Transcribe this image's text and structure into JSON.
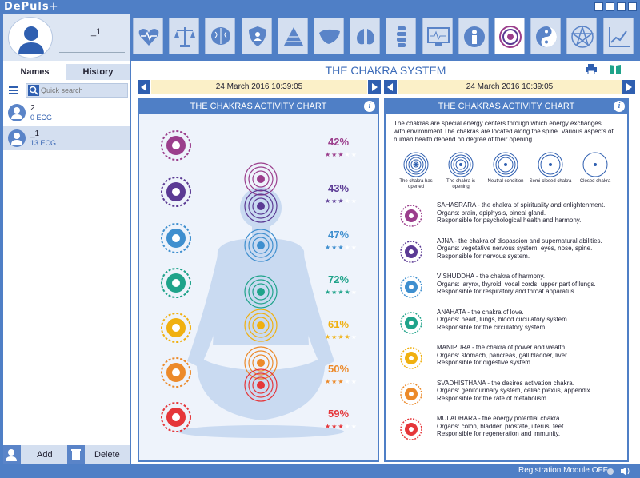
{
  "app": {
    "title": "DePuls+"
  },
  "user": {
    "name": "_1"
  },
  "tabs": [
    {
      "label": "Names"
    },
    {
      "label": "History"
    }
  ],
  "search": {
    "placeholder": "Quick search"
  },
  "patients": [
    {
      "name": "2",
      "ecg": "0 ECG",
      "selected": false
    },
    {
      "name": "_1",
      "ecg": "13 ECG",
      "selected": true
    }
  ],
  "actions": {
    "add": "Add",
    "delete": "Delete"
  },
  "toolbar": {
    "icons": [
      "heart-pulse-icon",
      "scales-icon",
      "brain-icon",
      "shield-icon",
      "pyramid-icon",
      "liver-icon",
      "lungs-icon",
      "spine-icon",
      "monitor-icon",
      "person-icon",
      "chakra-icon",
      "yin-yang-icon",
      "pentagram-icon",
      "chart-icon"
    ],
    "active_index": 10
  },
  "page": {
    "title": "THE CHAKRA SYSTEM"
  },
  "left": {
    "date": "24 March 2016 10:39:05",
    "panel_title": "THE CHAKRAS ACTIVITY CHART"
  },
  "right": {
    "date": "24 March 2016 10:39:05",
    "panel_title": "THE CHAKRAS ACTIVITY CHART",
    "intro": "The chakras are special energy centers through which energy exchanges with environment.The chakras are located along the spine. Various aspects of human health depend on degree of their opening.",
    "legend": [
      "The chakra has opened",
      "The chakra is opening",
      "Neutral condition",
      "Semi-closed chakra",
      "Closed chakra"
    ]
  },
  "chakras": [
    {
      "name": "SAHASRARA",
      "percent": "42%",
      "stars": 3,
      "color": "#9b3e8c",
      "text": [
        "SAHASRARA - the chakra of spirituality and enlightenment.",
        "Organs: brain, epiphysis, pineal gland.",
        "Responsible for psychological health and harmony."
      ]
    },
    {
      "name": "AJNA",
      "percent": "43%",
      "stars": 3,
      "color": "#5b3a94",
      "text": [
        "AJNA - the chakra of dispassion and supernatural abilities.",
        " Organs: vegetative nervous system, eyes, nose, spine.",
        " Responsible for nervous system."
      ]
    },
    {
      "name": "VISHUDDHA",
      "percent": "47%",
      "stars": 3,
      "color": "#3f8fcf",
      "text": [
        "VISHUDDHA - the chakra of harmony.",
        " Organs: larynx, thyroid, vocal cords, upper part of lungs.",
        " Responsible for respiratory and throat apparatus."
      ]
    },
    {
      "name": "ANAHATA",
      "percent": "72%",
      "stars": 4,
      "color": "#1fa38a",
      "text": [
        "ANAHATA - the chakra of love.",
        " Organs: heart, lungs, blood circulatory system.",
        " Responsible for the circulatory system."
      ]
    },
    {
      "name": "MANIPURA",
      "percent": "61%",
      "stars": 4,
      "color": "#f0b010",
      "text": [
        "MANIPURA - the chakra of power and wealth.",
        " Organs: stomach, pancreas, gall bladder, liver.",
        " Responsible for digestive system."
      ]
    },
    {
      "name": "SVADHISTHANA",
      "percent": "50%",
      "stars": 3,
      "color": "#ec8a2a",
      "text": [
        "SVADHISTHANA - the desires activation chakra.",
        "Organs: genitourinary system, celiac plexus, appendix.",
        "Responsible for the rate of metabolism."
      ]
    },
    {
      "name": "MULADHARA",
      "percent": "59%",
      "stars": 3,
      "color": "#e5363a",
      "text": [
        "MULADHARA - the energy potential chakra.",
        "Organs: colon, bladder, prostate, uterus, feet.",
        "Responsible for regeneration and immunity."
      ]
    }
  ],
  "status": {
    "text": "Registration Module OFF"
  }
}
